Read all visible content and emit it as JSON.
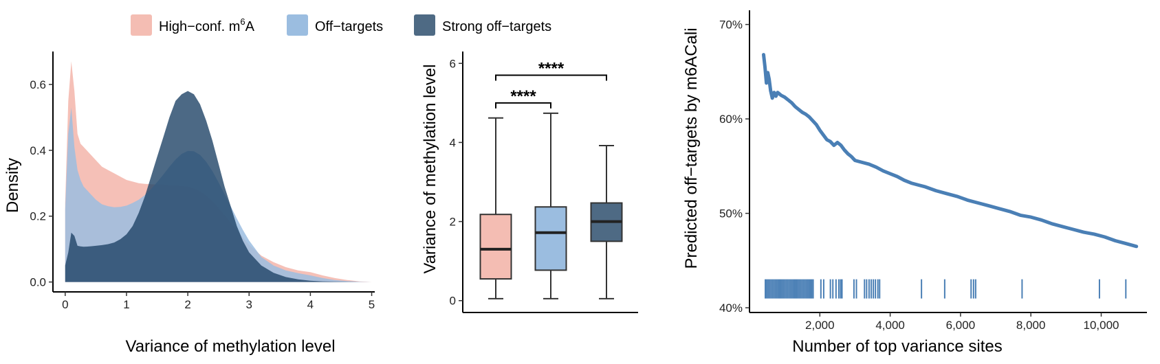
{
  "legend": [
    {
      "label_main": "High−conf. m",
      "label_sup": "6",
      "label_tail": "A",
      "color": "#F4BDB3"
    },
    {
      "label_main": "Off−targets",
      "label_sup": "",
      "label_tail": "",
      "color": "#9BBDE0"
    },
    {
      "label_main": "Strong off−targets",
      "label_sup": "",
      "label_tail": "",
      "color": "#4E6A84"
    }
  ],
  "colors": {
    "high_conf": "#F4BDB3",
    "off_targets": "#9BBDE0",
    "strong_off": "#4E6A84",
    "strong_off_fill": "#1F4466",
    "line": "#4A7FB5",
    "rug": "#4A7FB5"
  },
  "chart_data": [
    {
      "type": "area",
      "subtype": "density",
      "xlabel": "Variance of methylation level",
      "ylabel": "Density",
      "xlim": [
        -0.2,
        5.05
      ],
      "ylim": [
        -0.03,
        0.7
      ],
      "xticks": [
        0,
        1,
        2,
        3,
        4,
        5
      ],
      "yticks": [
        0.0,
        0.2,
        0.4,
        0.6
      ],
      "ytick_labels": [
        "0.0",
        "0.2",
        "0.4",
        "0.6"
      ],
      "x": [
        0,
        0.05,
        0.1,
        0.15,
        0.2,
        0.25,
        0.3,
        0.4,
        0.5,
        0.6,
        0.7,
        0.8,
        0.9,
        1.0,
        1.1,
        1.2,
        1.3,
        1.4,
        1.5,
        1.6,
        1.7,
        1.8,
        1.9,
        2.0,
        2.1,
        2.2,
        2.3,
        2.4,
        2.5,
        2.6,
        2.7,
        2.8,
        2.9,
        3.0,
        3.2,
        3.4,
        3.6,
        3.8,
        4.0,
        4.2,
        4.4,
        4.6,
        4.8,
        5.0
      ],
      "series": [
        {
          "name": "High−conf. m6A",
          "values": [
            0.24,
            0.55,
            0.67,
            0.58,
            0.45,
            0.42,
            0.41,
            0.39,
            0.37,
            0.35,
            0.34,
            0.33,
            0.32,
            0.31,
            0.305,
            0.3,
            0.298,
            0.297,
            0.296,
            0.295,
            0.294,
            0.293,
            0.291,
            0.29,
            0.284,
            0.275,
            0.262,
            0.245,
            0.225,
            0.203,
            0.18,
            0.158,
            0.135,
            0.113,
            0.08,
            0.06,
            0.045,
            0.035,
            0.03,
            0.02,
            0.012,
            0.006,
            0.002,
            0.0
          ]
        },
        {
          "name": "Off−targets",
          "values": [
            0.22,
            0.45,
            0.53,
            0.41,
            0.34,
            0.31,
            0.29,
            0.27,
            0.25,
            0.236,
            0.23,
            0.227,
            0.228,
            0.232,
            0.24,
            0.25,
            0.264,
            0.282,
            0.303,
            0.326,
            0.35,
            0.372,
            0.389,
            0.398,
            0.397,
            0.386,
            0.365,
            0.337,
            0.303,
            0.267,
            0.23,
            0.193,
            0.158,
            0.126,
            0.076,
            0.05,
            0.035,
            0.027,
            0.02,
            0.012,
            0.006,
            0.003,
            0.001,
            0.0
          ]
        },
        {
          "name": "Strong off−targets",
          "values": [
            0.05,
            0.09,
            0.15,
            0.14,
            0.11,
            0.108,
            0.107,
            0.108,
            0.11,
            0.112,
            0.115,
            0.12,
            0.13,
            0.145,
            0.17,
            0.21,
            0.26,
            0.32,
            0.38,
            0.44,
            0.5,
            0.55,
            0.57,
            0.58,
            0.57,
            0.54,
            0.49,
            0.43,
            0.36,
            0.29,
            0.23,
            0.17,
            0.125,
            0.09,
            0.05,
            0.028,
            0.015,
            0.008,
            0.004,
            0.002,
            0.001,
            0.0005,
            0.0,
            0.0
          ]
        }
      ]
    },
    {
      "type": "box",
      "ylabel": "Variance of methylation level",
      "xlabel": "",
      "ylim": [
        -0.3,
        6.3
      ],
      "yticks": [
        0,
        2,
        4,
        6
      ],
      "boxes": [
        {
          "name": "High−conf. m6A",
          "whisker_low": 0.05,
          "q1": 0.55,
          "median": 1.3,
          "q3": 2.18,
          "whisker_high": 4.62
        },
        {
          "name": "Off−targets",
          "whisker_low": 0.05,
          "q1": 0.77,
          "median": 1.72,
          "q3": 2.37,
          "whisker_high": 4.74
        },
        {
          "name": "Strong off−targets",
          "whisker_low": 0.05,
          "q1": 1.5,
          "median": 2.0,
          "q3": 2.47,
          "whisker_high": 3.92
        }
      ],
      "significance": [
        {
          "from": 0,
          "to": 2,
          "label": "****",
          "y": 5.7
        },
        {
          "from": 0,
          "to": 1,
          "label": "****",
          "y": 5.0
        }
      ]
    },
    {
      "type": "line",
      "xlabel": "Number of top variance sites",
      "ylabel": "Predicted off−targets by m6ACali",
      "xlim": [
        0,
        11300
      ],
      "ylim": [
        39.5,
        71.5
      ],
      "xticks": [
        2000,
        4000,
        6000,
        8000,
        10000
      ],
      "xtick_labels": [
        "2,000",
        "4,000",
        "6,000",
        "8,000",
        "10,000"
      ],
      "yticks": [
        40,
        50,
        60,
        70
      ],
      "ytick_labels": [
        "40%",
        "50%",
        "60%",
        "70%"
      ],
      "x": [
        400,
        440,
        480,
        520,
        560,
        600,
        650,
        700,
        750,
        800,
        900,
        1000,
        1100,
        1200,
        1300,
        1400,
        1500,
        1600,
        1700,
        1800,
        1900,
        2000,
        2100,
        2200,
        2300,
        2400,
        2500,
        2600,
        2700,
        2800,
        2900,
        3000,
        3200,
        3400,
        3600,
        3800,
        4000,
        4200,
        4400,
        4600,
        4800,
        5000,
        5300,
        5600,
        5900,
        6200,
        6500,
        6800,
        7100,
        7400,
        7700,
        8000,
        8300,
        8600,
        8900,
        9200,
        9500,
        9800,
        10100,
        10400,
        10700,
        11000
      ],
      "values": [
        66.8,
        65.5,
        63.8,
        64.9,
        64.2,
        63.0,
        62.2,
        62.8,
        62.4,
        62.8,
        62.5,
        62.3,
        62.0,
        61.7,
        61.3,
        61.0,
        60.7,
        60.5,
        60.2,
        59.8,
        59.4,
        58.8,
        58.3,
        57.8,
        57.6,
        57.2,
        57.5,
        57.2,
        56.7,
        56.3,
        56.0,
        55.6,
        55.4,
        55.2,
        54.9,
        54.5,
        54.2,
        53.9,
        53.5,
        53.2,
        53.0,
        52.8,
        52.4,
        52.1,
        51.8,
        51.4,
        51.1,
        50.8,
        50.5,
        50.2,
        49.8,
        49.6,
        49.3,
        48.9,
        48.6,
        48.3,
        48.0,
        47.8,
        47.5,
        47.1,
        46.8,
        46.5
      ],
      "rug_positions": [
        450,
        490,
        530,
        570,
        610,
        650,
        690,
        730,
        770,
        810,
        850,
        890,
        930,
        970,
        1010,
        1050,
        1090,
        1130,
        1170,
        1210,
        1250,
        1290,
        1330,
        1370,
        1410,
        1450,
        1490,
        1530,
        1570,
        1610,
        1650,
        1690,
        1730,
        1770,
        1810,
        2030,
        2110,
        2300,
        2370,
        2460,
        2540,
        2590,
        2630,
        2970,
        3040,
        3270,
        3330,
        3400,
        3460,
        3520,
        3580,
        3650,
        3700,
        4890,
        5550,
        6300,
        6370,
        6430,
        7750,
        9950,
        10700
      ],
      "rug_y": 42.0
    }
  ]
}
